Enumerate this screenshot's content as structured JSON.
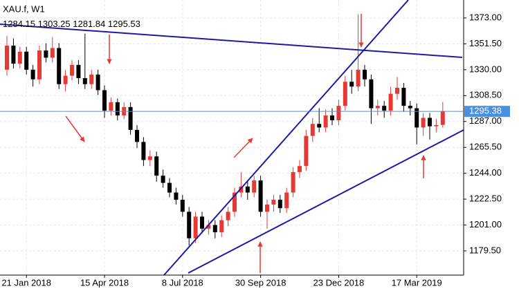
{
  "chart_data": {
    "type": "candlestick",
    "title": "XAU.f, W1",
    "categories": [
      null,
      null,
      null,
      "21 Jan 2018",
      null,
      null,
      null,
      null,
      null,
      null,
      null,
      null,
      null,
      null,
      null,
      "15 Apr 2018",
      null,
      null,
      null,
      null,
      null,
      null,
      null,
      null,
      null,
      null,
      null,
      "8 Jul 2018",
      null,
      null,
      null,
      null,
      null,
      null,
      null,
      null,
      null,
      null,
      null,
      "30 Sep 2018",
      null,
      null,
      null,
      null,
      null,
      null,
      null,
      null,
      null,
      null,
      null,
      "23 Dec 2018",
      null,
      null,
      null,
      null,
      null,
      null,
      null,
      null,
      null,
      null,
      null,
      "17 Mar 2019",
      null,
      null,
      null,
      null
    ],
    "open": [
      1330,
      1350,
      1335,
      1345,
      1330,
      1322,
      1346,
      1340,
      1348,
      1318,
      1325,
      1334,
      1323,
      1318,
      1326,
      1313,
      1296,
      1303,
      1292,
      1299,
      1280,
      1270,
      1255,
      1258,
      1242,
      1236,
      1228,
      1222,
      1212,
      1190,
      1208,
      1198,
      1201,
      1195,
      1205,
      1212,
      1228,
      1233,
      1228,
      1238,
      1212,
      1218,
      1222,
      1215,
      1228,
      1245,
      1250,
      1275,
      1285,
      1282,
      1292,
      1288,
      1300,
      1320,
      1316,
      1330,
      1322,
      1298,
      1300,
      1296,
      1310,
      1315,
      1300,
      1298,
      1282,
      1290,
      1283,
      1284.15
    ],
    "high": [
      1358,
      1356,
      1349,
      1349,
      1334,
      1350,
      1352,
      1357,
      1352,
      1330,
      1338,
      1338,
      1360,
      1330,
      1330,
      1317,
      1307,
      1306,
      1303,
      1303,
      1284,
      1274,
      1263,
      1262,
      1247,
      1240,
      1232,
      1226,
      1216,
      1212,
      1212,
      1205,
      1205,
      1209,
      1216,
      1232,
      1245,
      1237,
      1242,
      1242,
      1222,
      1226,
      1226,
      1232,
      1249,
      1255,
      1280,
      1290,
      1298,
      1297,
      1298,
      1305,
      1325,
      1330,
      1376,
      1334,
      1326,
      1305,
      1304,
      1316,
      1324,
      1319,
      1304,
      1302,
      1294,
      1294,
      1289,
      1303.25
    ],
    "low": [
      1325,
      1331,
      1331,
      1326,
      1316,
      1318,
      1336,
      1336,
      1314,
      1312,
      1321,
      1318,
      1314,
      1314,
      1309,
      1290,
      1292,
      1288,
      1289,
      1276,
      1265,
      1250,
      1250,
      1237,
      1232,
      1224,
      1218,
      1208,
      1184,
      1186,
      1194,
      1193,
      1190,
      1191,
      1200,
      1208,
      1224,
      1222,
      1224,
      1208,
      1198,
      1212,
      1211,
      1211,
      1224,
      1240,
      1246,
      1270,
      1278,
      1278,
      1284,
      1284,
      1296,
      1310,
      1312,
      1316,
      1285,
      1292,
      1290,
      1292,
      1305,
      1295,
      1292,
      1268,
      1275,
      1272,
      1278,
      1281.84
    ],
    "close": [
      1350,
      1335,
      1345,
      1330,
      1322,
      1346,
      1340,
      1348,
      1318,
      1325,
      1334,
      1323,
      1318,
      1326,
      1313,
      1296,
      1303,
      1292,
      1299,
      1280,
      1270,
      1255,
      1258,
      1242,
      1236,
      1228,
      1222,
      1212,
      1190,
      1208,
      1198,
      1201,
      1195,
      1205,
      1212,
      1228,
      1233,
      1228,
      1238,
      1212,
      1218,
      1222,
      1215,
      1228,
      1245,
      1250,
      1275,
      1285,
      1282,
      1292,
      1288,
      1300,
      1320,
      1316,
      1330,
      1322,
      1298,
      1300,
      1296,
      1310,
      1315,
      1300,
      1298,
      1282,
      1290,
      1283,
      1284,
      1295.53
    ],
    "up_color": "#e53935",
    "down_color": "#000000",
    "current_price": 1295.38,
    "current_price_color": "#4a90e2",
    "ylim": [
      1159.4,
      1387.9
    ],
    "yticks": [
      {
        "value": 1179.5,
        "label": "1179.50"
      },
      {
        "value": 1201,
        "label": "1201.00"
      },
      {
        "value": 1222.5,
        "label": "1222.50"
      },
      {
        "value": 1244,
        "label": "1244.00"
      },
      {
        "value": 1265.5,
        "label": "1265.50"
      },
      {
        "value": 1287,
        "label": "1287.00"
      },
      {
        "value": 1308.5,
        "label": "1308.50"
      },
      {
        "value": 1330,
        "label": "1330.00"
      },
      {
        "value": 1351.5,
        "label": "1351.50"
      },
      {
        "value": 1373,
        "label": "1373.00"
      }
    ],
    "grid": true
  }
}
